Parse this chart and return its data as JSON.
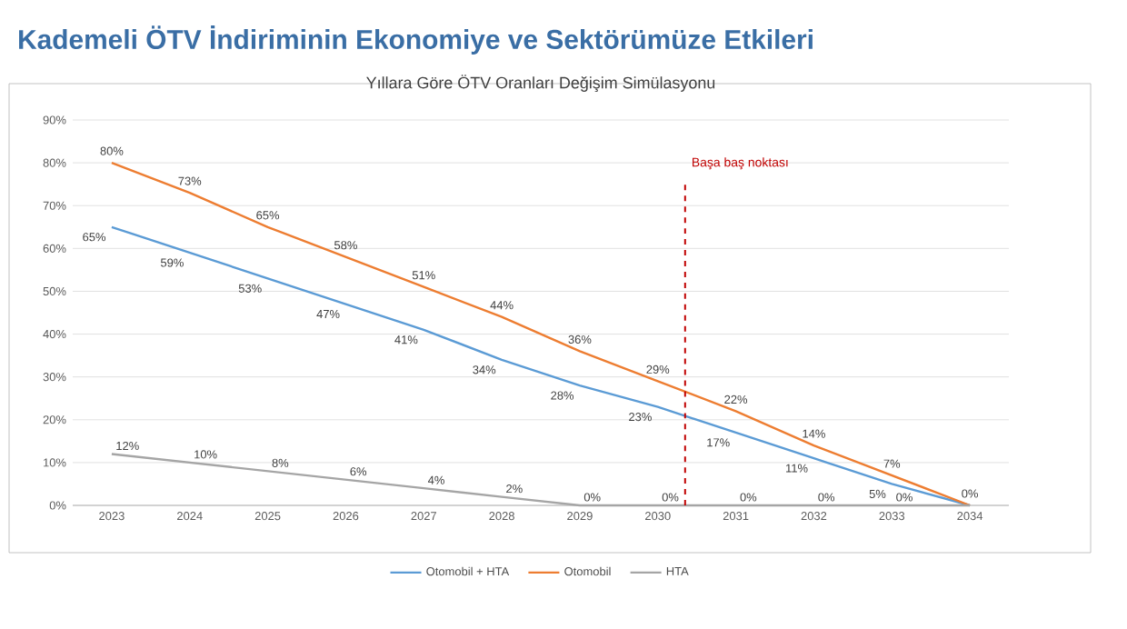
{
  "chart_data": {
    "type": "line",
    "title": "Kademeli ÖTV İndiriminin Ekonomiye ve Sektörümüze Etkileri",
    "subtitle": "Yıllara Göre ÖTV Oranları Değişim Simülasyonu",
    "x": [
      2023,
      2024,
      2025,
      2026,
      2027,
      2028,
      2029,
      2030,
      2031,
      2032,
      2033,
      2034
    ],
    "xlim": [
      2022.5,
      2034.5
    ],
    "xticks": [
      2023,
      2024,
      2025,
      2026,
      2027,
      2028,
      2029,
      2030,
      2031,
      2032,
      2033,
      2034
    ],
    "ylim": [
      0,
      90
    ],
    "yticks": [
      {
        "value": 0,
        "label": "0%"
      },
      {
        "value": 10,
        "label": "10%"
      },
      {
        "value": 20,
        "label": "20%"
      },
      {
        "value": 30,
        "label": "30%"
      },
      {
        "value": 40,
        "label": "40%"
      },
      {
        "value": 50,
        "label": "50%"
      },
      {
        "value": 60,
        "label": "60%"
      },
      {
        "value": 70,
        "label": "70%"
      },
      {
        "value": 80,
        "label": "80%"
      },
      {
        "value": 90,
        "label": "90%"
      }
    ],
    "grid": "y",
    "legend": "bottom",
    "marker": "none",
    "series": [
      {
        "name": "Otomobil + HTA",
        "color": "#5b9bd5",
        "values": [
          65,
          59,
          53,
          47,
          41,
          34,
          28,
          23,
          17,
          11,
          5,
          0
        ],
        "value_labels": [
          "65%",
          "59%",
          "53%",
          "47%",
          "41%",
          "34%",
          "28%",
          "23%",
          "17%",
          "11%",
          "5%",
          null
        ]
      },
      {
        "name": "Otomobil",
        "color": "#ed7d31",
        "values": [
          80,
          73,
          65,
          58,
          51,
          44,
          36,
          29,
          22,
          14,
          7,
          0
        ],
        "value_labels": [
          "80%",
          "73%",
          "65%",
          "58%",
          "51%",
          "44%",
          "36%",
          "29%",
          "22%",
          "14%",
          "7%",
          "0%"
        ]
      },
      {
        "name": "HTA",
        "color": "#a5a5a5",
        "values": [
          12,
          10,
          8,
          6,
          4,
          2,
          0,
          0,
          0,
          0,
          0,
          0
        ],
        "value_labels": [
          "12%",
          "10%",
          "8%",
          "6%",
          "4%",
          "2%",
          "0%",
          "0%",
          "0%",
          "0%",
          "0%",
          null
        ]
      }
    ],
    "ref_lines": [
      {
        "axis": "x",
        "value": 2030.35,
        "label": "Başa baş noktası",
        "color": "#c00000",
        "line_style": "dashed"
      }
    ]
  }
}
